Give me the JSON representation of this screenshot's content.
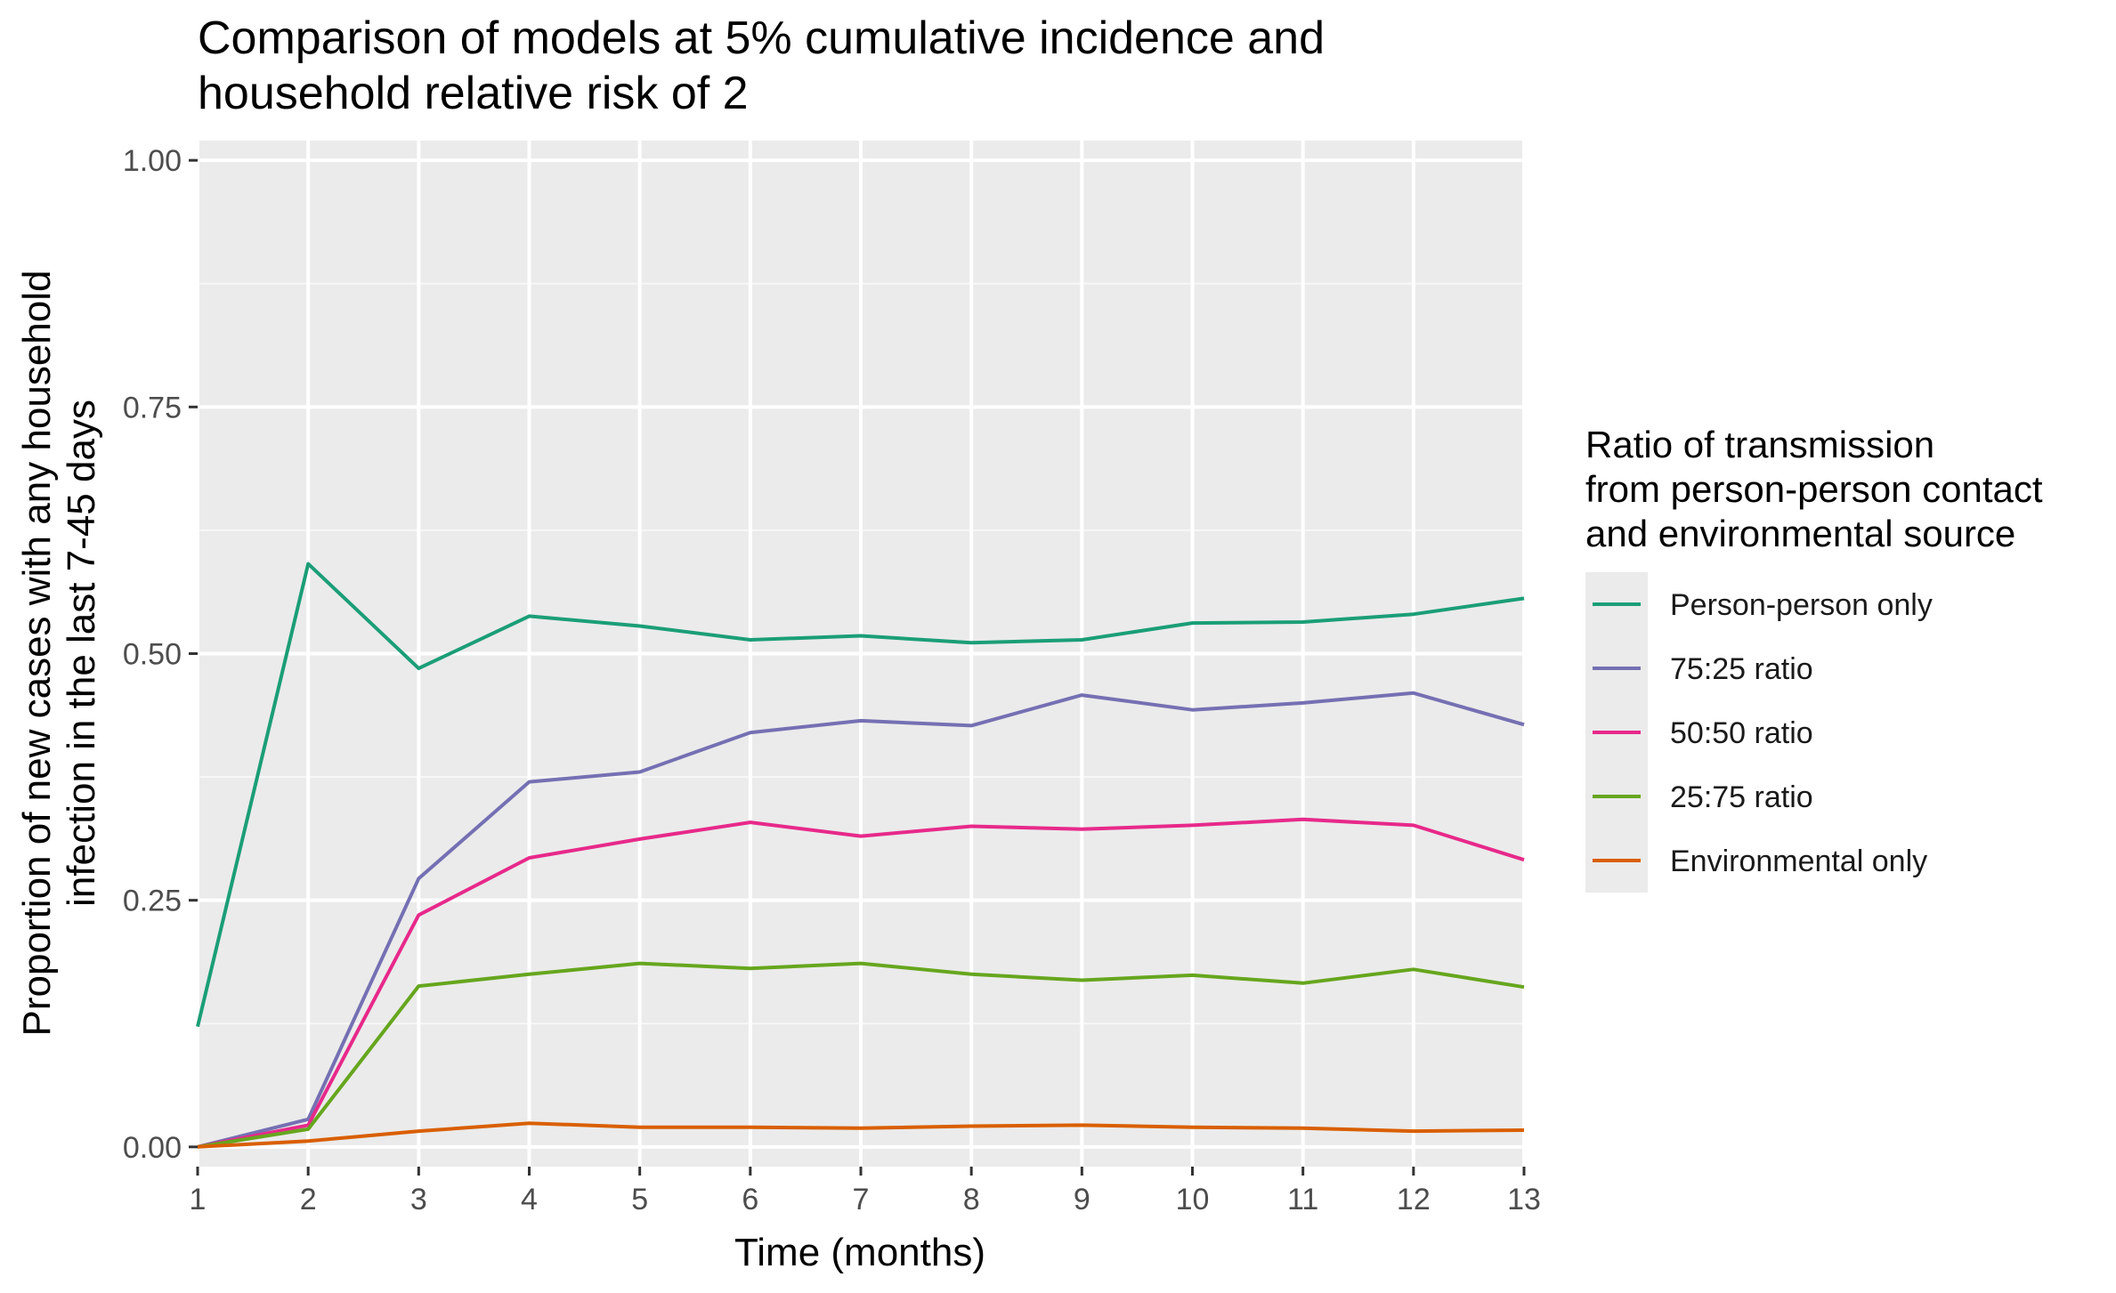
{
  "chart_data": {
    "type": "line",
    "title": [
      "Comparison of models at 5% cumulative incidence and",
      "household relative risk of 2"
    ],
    "xlabel": "Time (months)",
    "ylabel": [
      "Proportion of new cases with any household",
      "infection in the last 7-45 days"
    ],
    "xlim": [
      1,
      13
    ],
    "ylim": [
      0,
      1
    ],
    "x": [
      1,
      2,
      3,
      4,
      5,
      6,
      7,
      8,
      9,
      10,
      11,
      12,
      13
    ],
    "x_ticks": [
      "1",
      "2",
      "3",
      "4",
      "5",
      "6",
      "7",
      "8",
      "9",
      "10",
      "11",
      "12",
      "13"
    ],
    "y_ticks": [
      0,
      0.25,
      0.5,
      0.75,
      1.0
    ],
    "y_tick_labels": [
      "0.00",
      "0.25",
      "0.50",
      "0.75",
      "1.00"
    ],
    "grid": true,
    "legend": {
      "title": [
        "Ratio of transmission",
        "from person-person contact",
        "and environmental source"
      ],
      "position": "right"
    },
    "series": [
      {
        "name": "Person-person only",
        "color": "#1b9e77",
        "values": [
          0.122,
          0.591,
          0.485,
          0.538,
          0.528,
          0.514,
          0.518,
          0.511,
          0.514,
          0.531,
          0.532,
          0.54,
          0.556
        ]
      },
      {
        "name": "75:25 ratio",
        "color": "#7570b3",
        "values": [
          0.0,
          0.028,
          0.272,
          0.37,
          0.38,
          0.42,
          0.432,
          0.427,
          0.458,
          0.443,
          0.45,
          0.46,
          0.428
        ]
      },
      {
        "name": "50:50 ratio",
        "color": "#e7298a",
        "values": [
          0.0,
          0.022,
          0.235,
          0.293,
          0.312,
          0.329,
          0.315,
          0.325,
          0.322,
          0.326,
          0.332,
          0.326,
          0.291
        ]
      },
      {
        "name": "25:75 ratio",
        "color": "#66a61e",
        "values": [
          0.0,
          0.018,
          0.163,
          0.175,
          0.186,
          0.181,
          0.186,
          0.175,
          0.169,
          0.174,
          0.166,
          0.18,
          0.162
        ]
      },
      {
        "name": "Environmental only",
        "color": "#d95f02",
        "values": [
          0.0,
          0.006,
          0.016,
          0.024,
          0.02,
          0.02,
          0.019,
          0.021,
          0.022,
          0.02,
          0.019,
          0.016,
          0.017
        ]
      }
    ]
  }
}
